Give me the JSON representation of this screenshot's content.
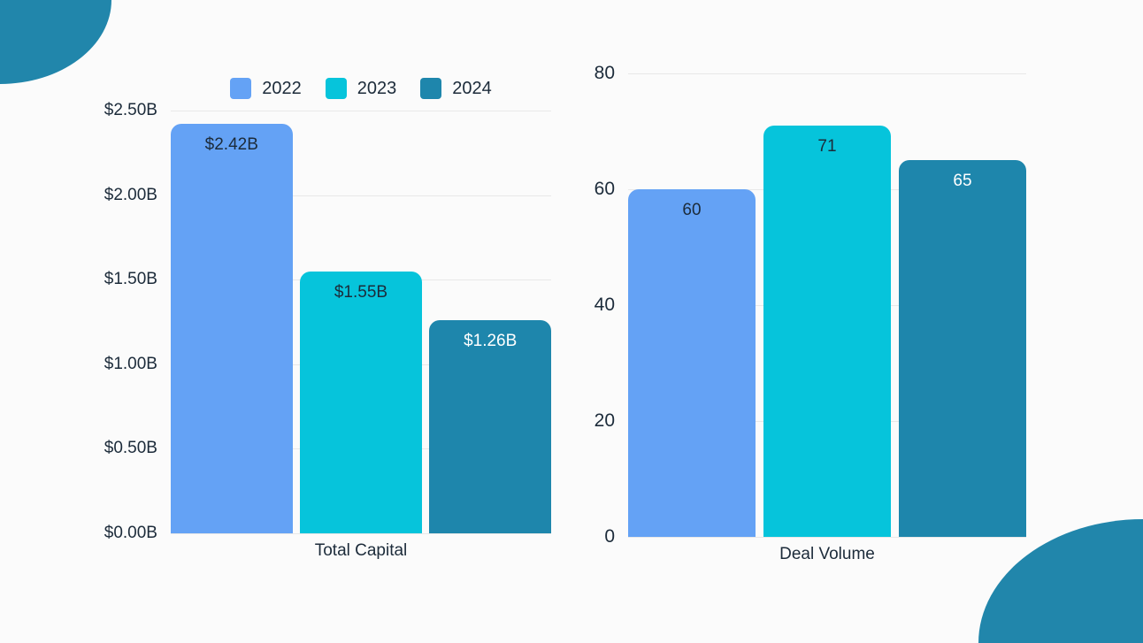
{
  "page": {
    "background": "#fbfbfb",
    "text_color": "#1c2b3a",
    "gridline_color": "#e8e8e8",
    "decoration_color": "#2186ab"
  },
  "legend": {
    "position": "top",
    "items": [
      {
        "label": "2022",
        "color": "#64a2f5"
      },
      {
        "label": "2023",
        "color": "#06c4db"
      },
      {
        "label": "2024",
        "color": "#1e86ac"
      }
    ]
  },
  "chart_data": [
    {
      "type": "bar",
      "title": "",
      "categories": [
        "2022",
        "2023",
        "2024"
      ],
      "values": [
        2.42,
        1.55,
        1.26
      ],
      "value_labels": [
        "$2.42B",
        "$1.55B",
        "$1.26B"
      ],
      "bar_colors": [
        "#64a2f5",
        "#06c4db",
        "#1e86ac"
      ],
      "value_label_colors": [
        "#1c2b3a",
        "#1c2b3a",
        "#ffffff"
      ],
      "xlabel": "Total Capital",
      "ylabel": "",
      "ylim": [
        0,
        2.5
      ],
      "yticks": [
        2.5,
        2.0,
        1.5,
        1.0,
        0.5,
        0.0
      ],
      "ytick_labels": [
        "$2.50B",
        "$2.00B",
        "$1.50B",
        "$1.00B",
        "$0.50B",
        "$0.00B"
      ],
      "grid": true,
      "legend_position": "top"
    },
    {
      "type": "bar",
      "title": "",
      "categories": [
        "2022",
        "2023",
        "2024"
      ],
      "values": [
        60,
        71,
        65
      ],
      "value_labels": [
        "60",
        "71",
        "65"
      ],
      "bar_colors": [
        "#64a2f5",
        "#06c4db",
        "#1e86ac"
      ],
      "value_label_colors": [
        "#1c2b3a",
        "#1c2b3a",
        "#ffffff"
      ],
      "xlabel": "Deal Volume",
      "ylabel": "",
      "ylim": [
        0,
        80
      ],
      "yticks": [
        80,
        60,
        40,
        20,
        0
      ],
      "ytick_labels": [
        "80",
        "60",
        "40",
        "20",
        "0"
      ],
      "grid": true,
      "legend_position": "none"
    }
  ]
}
